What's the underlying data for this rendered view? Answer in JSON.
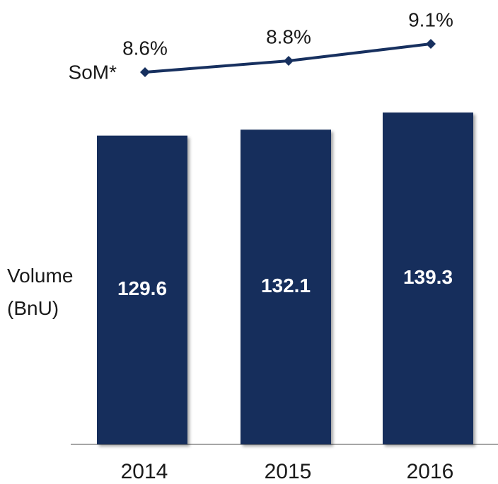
{
  "chart_data": {
    "type": "bar",
    "categories": [
      "2014",
      "2015",
      "2016"
    ],
    "series": [
      {
        "name": "Volume (BnU)",
        "type": "bar",
        "color": "#132d5b",
        "values": [
          129.6,
          132.1,
          139.3
        ]
      },
      {
        "name": "SoM*",
        "type": "line",
        "axis": "y2",
        "color": "#17305f",
        "values": [
          8.6,
          8.8,
          9.1
        ],
        "value_labels": [
          "8.6%",
          "8.8%",
          "9.1%"
        ]
      }
    ]
  }
}
